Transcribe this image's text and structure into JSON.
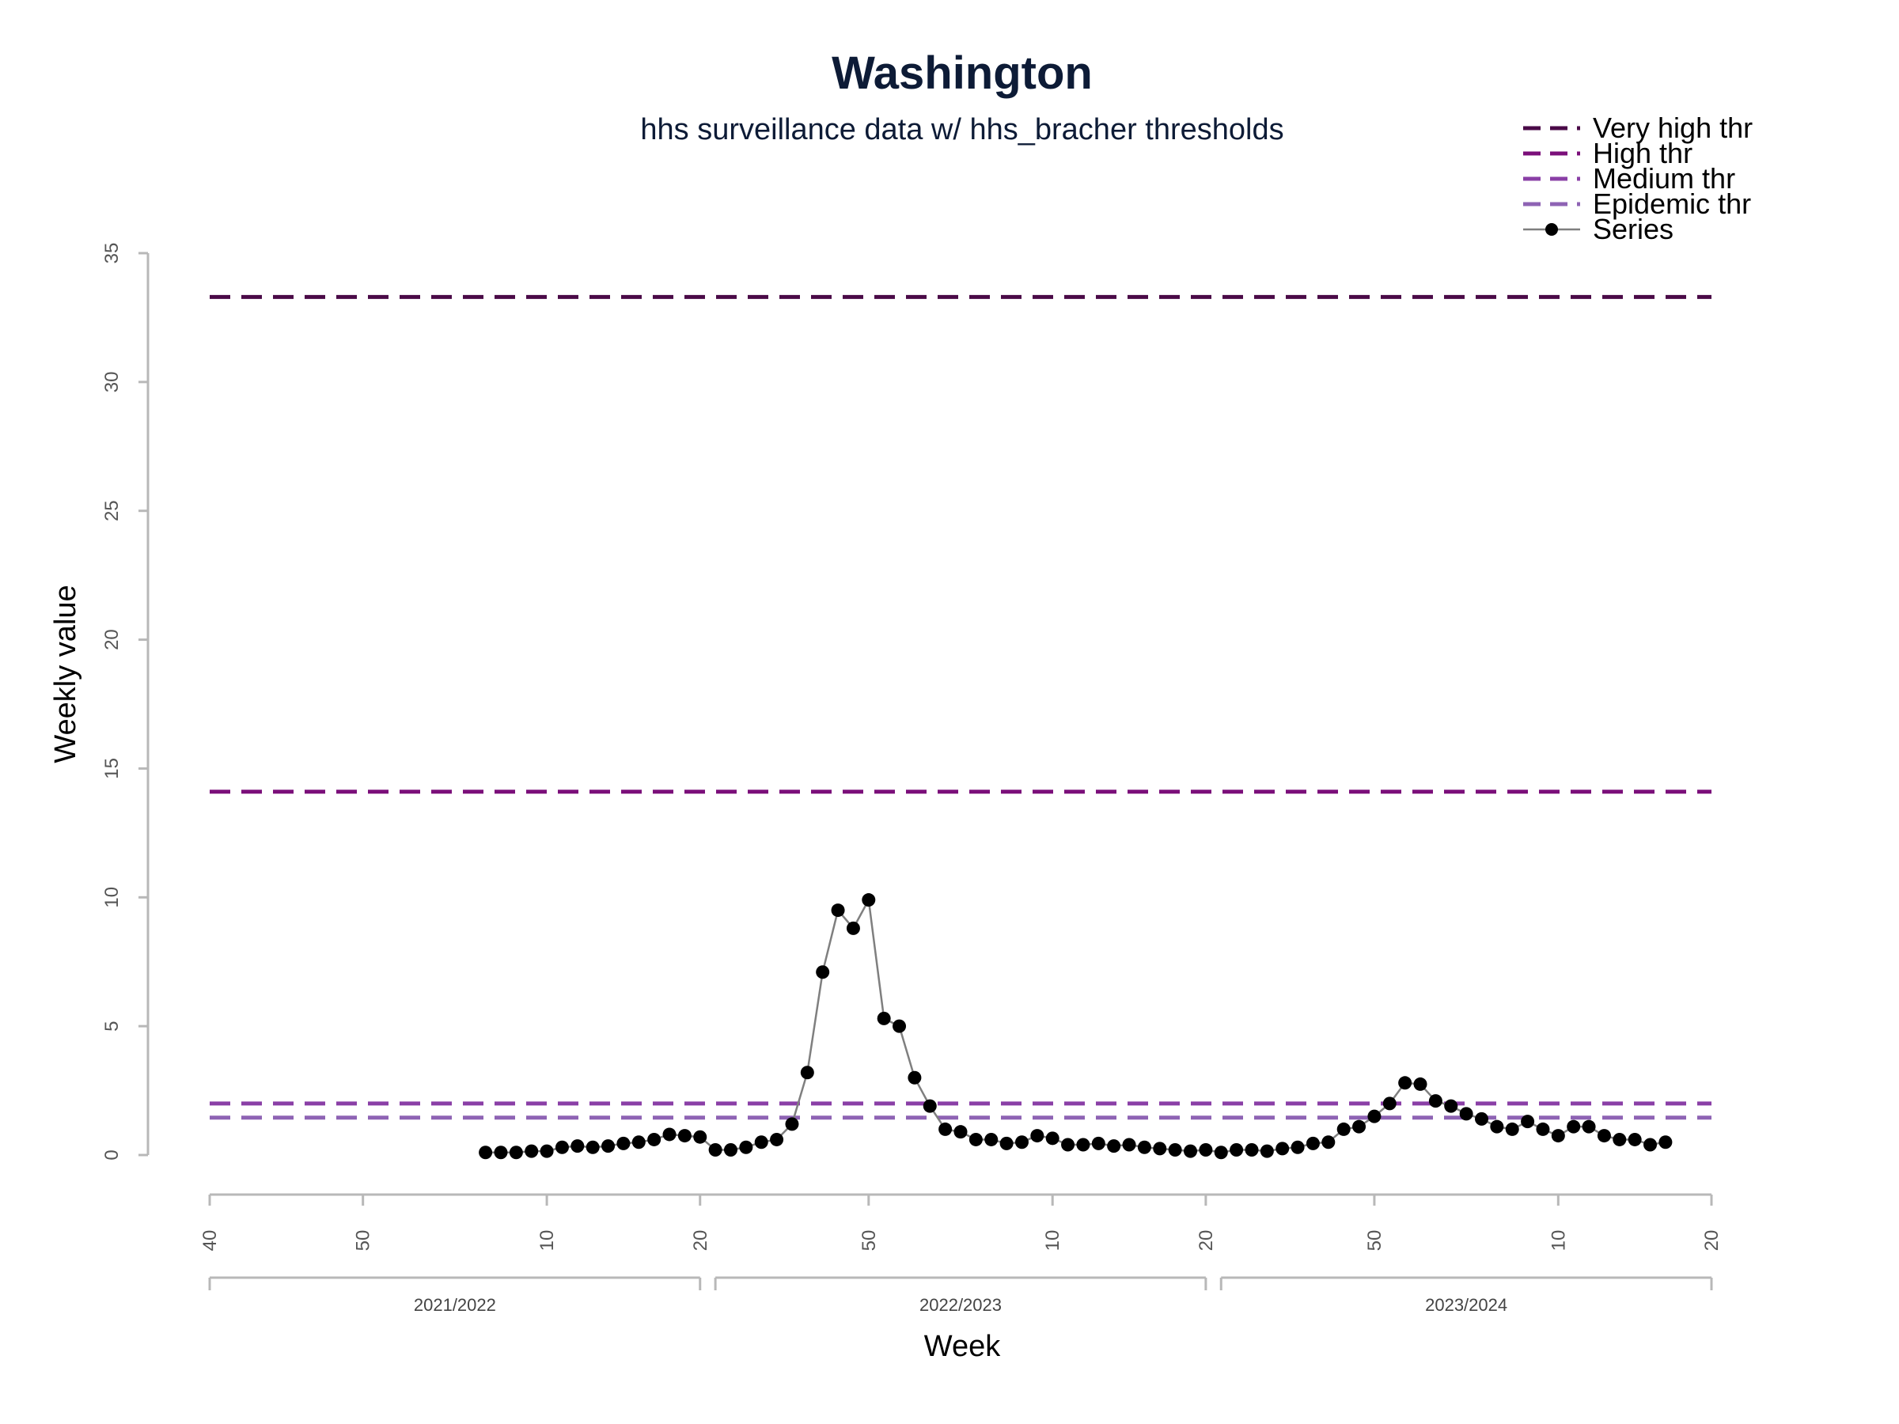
{
  "chart_data": {
    "type": "line",
    "title": "Washington",
    "subtitle": "hhs surveillance data w/ hhs_bracher thresholds",
    "xlabel": "Week",
    "ylabel": "Weekly value",
    "ylim": [
      0,
      35
    ],
    "yticks": [
      "0",
      "5",
      "10",
      "15",
      "20",
      "25",
      "30",
      "35"
    ],
    "xlim": [
      0,
      98
    ],
    "xticks": [
      {
        "pos": 0,
        "label": "40"
      },
      {
        "pos": 10,
        "label": "50"
      },
      {
        "pos": 22,
        "label": "10"
      },
      {
        "pos": 32,
        "label": "20"
      },
      {
        "pos": 43,
        "label": "50"
      },
      {
        "pos": 55,
        "label": "10"
      },
      {
        "pos": 65,
        "label": "20"
      },
      {
        "pos": 76,
        "label": "50"
      },
      {
        "pos": 88,
        "label": "10"
      },
      {
        "pos": 98,
        "label": "20"
      }
    ],
    "seasons": [
      {
        "label": "2021/2022",
        "start": 0,
        "end": 32
      },
      {
        "label": "2022/2023",
        "start": 33,
        "end": 65
      },
      {
        "label": "2023/2024",
        "start": 66,
        "end": 98
      }
    ],
    "thresholds": [
      {
        "name": "Very high thr",
        "value": 33.3,
        "color": "#4a0a47"
      },
      {
        "name": "High thr",
        "value": 14.1,
        "color": "#7b0f7a"
      },
      {
        "name": "Medium thr",
        "value": 2.0,
        "color": "#8a3fa6"
      },
      {
        "name": "Epidemic thr",
        "value": 1.45,
        "color": "#8e63b4"
      }
    ],
    "series": [
      {
        "name": "Series",
        "color": "#000000",
        "line_color": "#7f7f7f",
        "start_pos": 18,
        "values": [
          0.1,
          0.1,
          0.1,
          0.15,
          0.15,
          0.3,
          0.35,
          0.3,
          0.35,
          0.45,
          0.5,
          0.6,
          0.8,
          0.75,
          0.7,
          0.2,
          0.2,
          0.3,
          0.5,
          0.6,
          1.2,
          3.2,
          7.1,
          9.5,
          8.8,
          9.9,
          5.3,
          5.0,
          3.0,
          1.9,
          1.0,
          0.9,
          0.6,
          0.6,
          0.45,
          0.5,
          0.75,
          0.65,
          0.4,
          0.4,
          0.45,
          0.35,
          0.4,
          0.3,
          0.25,
          0.2,
          0.15,
          0.2,
          0.1,
          0.2,
          0.2,
          0.15,
          0.25,
          0.3,
          0.45,
          0.5,
          1.0,
          1.1,
          1.5,
          2.0,
          2.8,
          2.75,
          2.1,
          1.9,
          1.6,
          1.4,
          1.1,
          1.0,
          1.3,
          1.0,
          0.75,
          1.1,
          1.1,
          0.75,
          0.6,
          0.6,
          0.4,
          0.5
        ]
      }
    ],
    "legend": {
      "placement": "top-right",
      "entries": [
        {
          "label": "Very high thr",
          "color": "#4a0a47",
          "style": "dashed"
        },
        {
          "label": "High thr",
          "color": "#7b0f7a",
          "style": "dashed"
        },
        {
          "label": "Medium thr",
          "color": "#8a3fa6",
          "style": "dashed"
        },
        {
          "label": "Epidemic thr",
          "color": "#8e63b4",
          "style": "dashed"
        },
        {
          "label": "Series",
          "color": "#000000",
          "style": "line-point"
        }
      ]
    },
    "grid": false
  }
}
